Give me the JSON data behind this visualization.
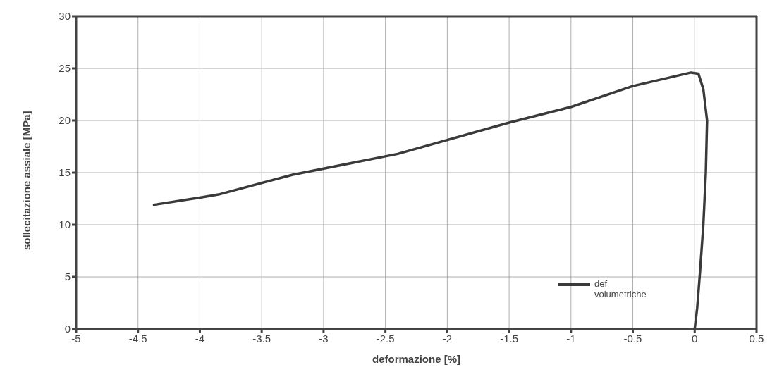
{
  "chart_data": {
    "type": "line",
    "xlabel": "deformazione [%]",
    "ylabel": "sollecitazione assiale [MPa]",
    "xlim": [
      -5,
      0.5
    ],
    "xticks": [
      -5,
      -4.5,
      -4,
      -3.5,
      -3,
      -2.5,
      -2,
      -1.5,
      -1,
      -0.5,
      0,
      0.5
    ],
    "ylim": [
      0,
      30
    ],
    "yticks": [
      0,
      5,
      10,
      15,
      20,
      25,
      30
    ],
    "grid": true,
    "legend": "bottom right",
    "marker": "none",
    "line_style": "solid",
    "series": [
      {
        "name": "def volumetriche",
        "color": "#3a3a3a",
        "x": [
          -4.38,
          -4.0,
          -3.85,
          -3.25,
          -2.4,
          -1.5,
          -1.0,
          -0.5,
          -0.03,
          0.03,
          0.07,
          0.1,
          0.09,
          0.07,
          0.04,
          0.02,
          0.0
        ],
        "values": [
          11.9,
          12.6,
          12.9,
          14.8,
          16.8,
          19.8,
          21.3,
          23.3,
          24.6,
          24.5,
          23.0,
          20.0,
          15.0,
          10.0,
          5.0,
          2.0,
          0.0
        ]
      }
    ]
  }
}
